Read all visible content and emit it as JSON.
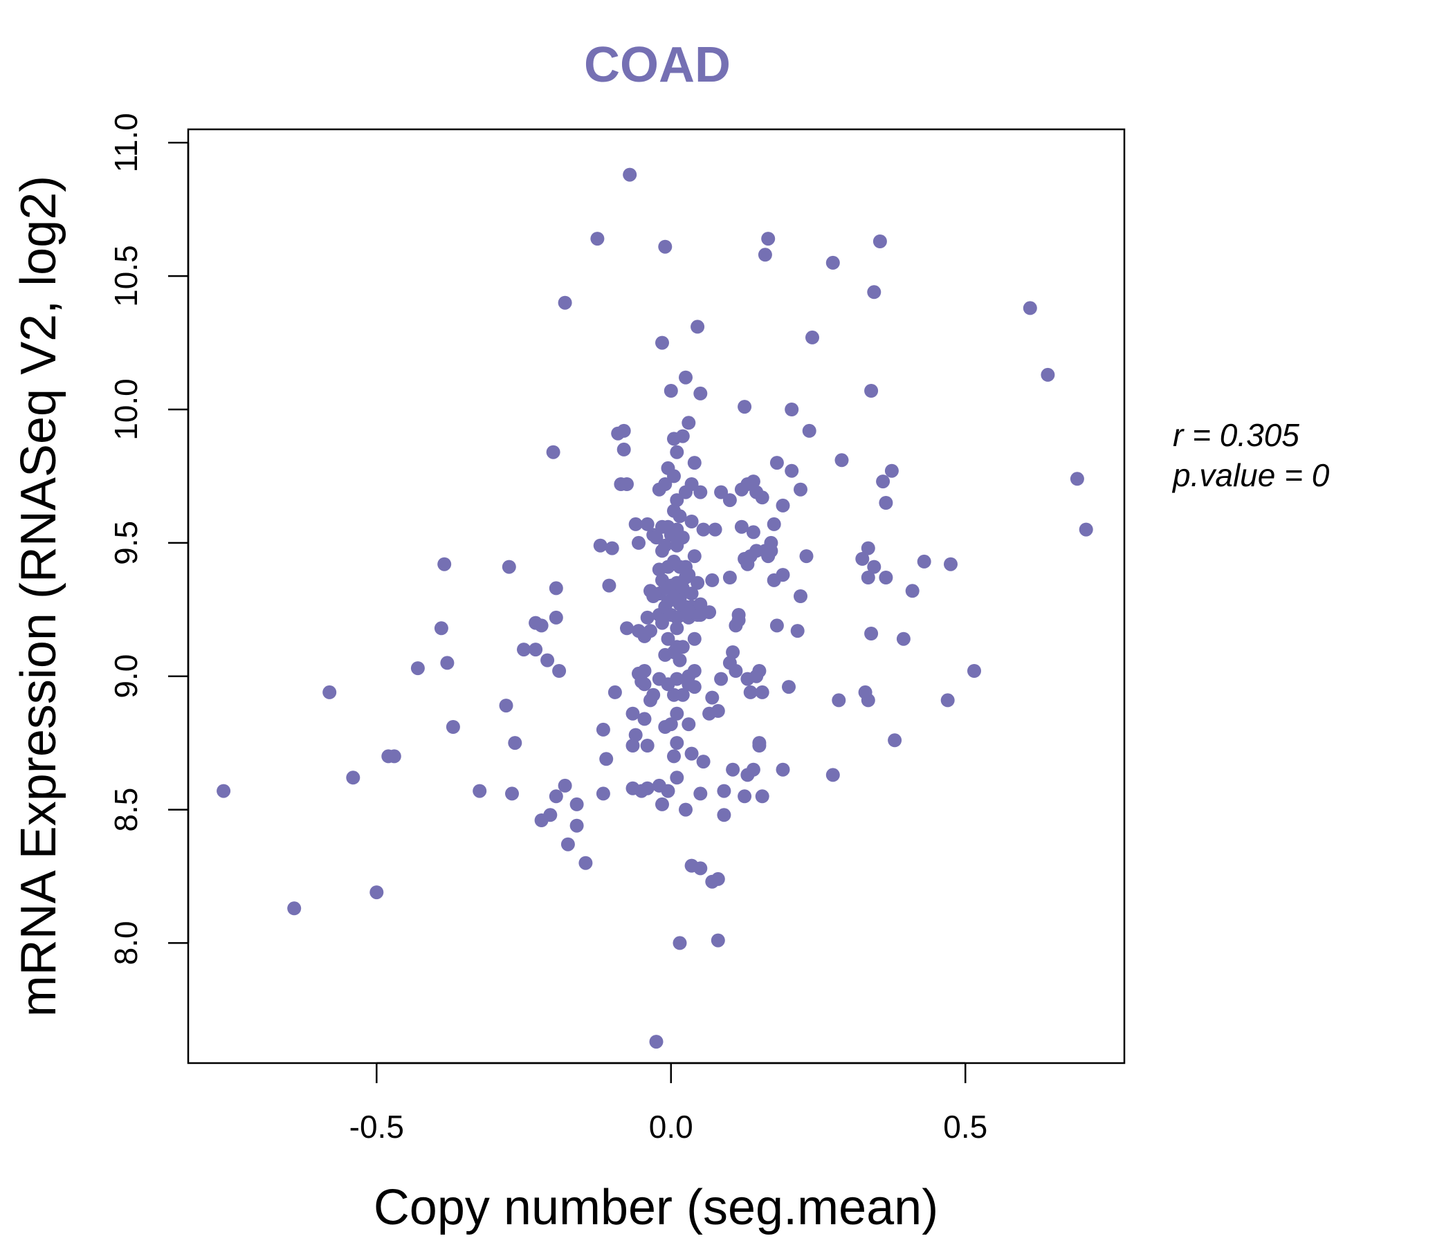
{
  "chart_data": {
    "type": "scatter",
    "title": "COAD",
    "xlabel": "Copy number (seg.mean)",
    "ylabel": "mRNA Expression (RNASeq V2, log2)",
    "xlim": [
      -0.82,
      0.77
    ],
    "ylim": [
      7.55,
      11.05
    ],
    "xticks": [
      -0.5,
      0.0,
      0.5
    ],
    "xtick_labels": [
      "-0.5",
      "0.0",
      "0.5"
    ],
    "yticks": [
      8.0,
      8.5,
      9.0,
      9.5,
      10.0,
      10.5,
      11.0
    ],
    "ytick_labels": [
      "8.0",
      "8.5",
      "9.0",
      "9.5",
      "10.0",
      "10.5",
      "11.0"
    ],
    "point_color": "#7570b3",
    "annotation": {
      "r_label": "r = 0.305",
      "p_label": "p.value = 0"
    },
    "points": [
      [
        -0.76,
        8.57
      ],
      [
        -0.64,
        8.13
      ],
      [
        -0.58,
        8.94
      ],
      [
        -0.54,
        8.62
      ],
      [
        -0.5,
        8.19
      ],
      [
        -0.48,
        8.7
      ],
      [
        -0.47,
        8.7
      ],
      [
        -0.43,
        9.03
      ],
      [
        -0.39,
        9.18
      ],
      [
        -0.385,
        9.42
      ],
      [
        -0.38,
        9.05
      ],
      [
        -0.37,
        8.81
      ],
      [
        -0.325,
        8.57
      ],
      [
        -0.28,
        8.89
      ],
      [
        -0.275,
        9.41
      ],
      [
        -0.27,
        8.56
      ],
      [
        -0.265,
        8.75
      ],
      [
        -0.25,
        9.1
      ],
      [
        -0.23,
        9.1
      ],
      [
        -0.23,
        9.2
      ],
      [
        -0.22,
        9.19
      ],
      [
        -0.22,
        8.46
      ],
      [
        -0.21,
        9.06
      ],
      [
        -0.205,
        8.48
      ],
      [
        -0.2,
        9.84
      ],
      [
        -0.195,
        9.22
      ],
      [
        -0.195,
        9.33
      ],
      [
        -0.19,
        9.02
      ],
      [
        -0.195,
        8.55
      ],
      [
        -0.18,
        10.4
      ],
      [
        -0.18,
        8.59
      ],
      [
        -0.175,
        8.37
      ],
      [
        -0.16,
        8.44
      ],
      [
        -0.16,
        8.52
      ],
      [
        -0.145,
        8.3
      ],
      [
        -0.125,
        10.64
      ],
      [
        -0.12,
        9.49
      ],
      [
        -0.115,
        8.8
      ],
      [
        -0.115,
        8.56
      ],
      [
        -0.11,
        8.69
      ],
      [
        -0.105,
        9.34
      ],
      [
        -0.1,
        9.48
      ],
      [
        -0.095,
        8.94
      ],
      [
        -0.09,
        9.91
      ],
      [
        -0.08,
        9.92
      ],
      [
        -0.08,
        9.85
      ],
      [
        -0.085,
        9.72
      ],
      [
        -0.075,
        9.72
      ],
      [
        -0.075,
        9.18
      ],
      [
        -0.07,
        10.88
      ],
      [
        -0.065,
        8.74
      ],
      [
        -0.065,
        8.58
      ],
      [
        -0.065,
        8.86
      ],
      [
        -0.06,
        9.57
      ],
      [
        -0.06,
        8.78
      ],
      [
        -0.055,
        9.5
      ],
      [
        -0.055,
        9.01
      ],
      [
        -0.055,
        9.17
      ],
      [
        -0.05,
        8.57
      ],
      [
        -0.05,
        8.98
      ],
      [
        -0.045,
        8.97
      ],
      [
        -0.045,
        9.02
      ],
      [
        -0.045,
        9.15
      ],
      [
        -0.045,
        8.84
      ],
      [
        -0.04,
        9.22
      ],
      [
        -0.04,
        9.57
      ],
      [
        -0.04,
        8.58
      ],
      [
        -0.04,
        8.74
      ],
      [
        -0.035,
        9.32
      ],
      [
        -0.035,
        8.91
      ],
      [
        -0.035,
        9.17
      ],
      [
        -0.03,
        9.3
      ],
      [
        -0.03,
        9.53
      ],
      [
        -0.03,
        8.93
      ],
      [
        -0.025,
        7.63
      ],
      [
        -0.025,
        9.52
      ],
      [
        -0.02,
        9.23
      ],
      [
        -0.02,
        9.4
      ],
      [
        -0.02,
        8.99
      ],
      [
        -0.02,
        8.59
      ],
      [
        -0.02,
        9.7
      ],
      [
        -0.02,
        9.31
      ],
      [
        -0.015,
        8.52
      ],
      [
        -0.015,
        10.25
      ],
      [
        -0.015,
        9.56
      ],
      [
        -0.015,
        9.2
      ],
      [
        -0.015,
        9.47
      ],
      [
        -0.015,
        9.36
      ],
      [
        -0.01,
        9.33
      ],
      [
        -0.01,
        9.49
      ],
      [
        -0.01,
        9.08
      ],
      [
        -0.01,
        8.81
      ],
      [
        -0.01,
        9.72
      ],
      [
        -0.01,
        9.26
      ],
      [
        -0.01,
        10.61
      ],
      [
        -0.005,
        9.56
      ],
      [
        -0.005,
        9.41
      ],
      [
        -0.005,
        8.97
      ],
      [
        -0.005,
        9.28
      ],
      [
        -0.005,
        8.57
      ],
      [
        -0.005,
        9.14
      ],
      [
        -0.005,
        9.78
      ],
      [
        0.0,
        9.34
      ],
      [
        0.0,
        10.07
      ],
      [
        0.0,
        8.82
      ],
      [
        0.0,
        9.53
      ],
      [
        0.0,
        9.23
      ],
      [
        0.005,
        9.43
      ],
      [
        0.005,
        9.62
      ],
      [
        0.005,
        8.7
      ],
      [
        0.005,
        9.09
      ],
      [
        0.005,
        9.3
      ],
      [
        0.005,
        8.93
      ],
      [
        0.005,
        9.89
      ],
      [
        0.005,
        9.75
      ],
      [
        0.01,
        9.22
      ],
      [
        0.01,
        9.49
      ],
      [
        0.01,
        9.11
      ],
      [
        0.01,
        9.66
      ],
      [
        0.01,
        8.99
      ],
      [
        0.01,
        8.86
      ],
      [
        0.01,
        8.75
      ],
      [
        0.01,
        9.35
      ],
      [
        0.01,
        8.62
      ],
      [
        0.01,
        9.84
      ],
      [
        0.01,
        9.18
      ],
      [
        0.01,
        9.55
      ],
      [
        0.015,
        9.6
      ],
      [
        0.015,
        9.27
      ],
      [
        0.015,
        9.06
      ],
      [
        0.015,
        9.41
      ],
      [
        0.015,
        9.29
      ],
      [
        0.015,
        8.0
      ],
      [
        0.02,
        9.52
      ],
      [
        0.02,
        9.33
      ],
      [
        0.02,
        9.11
      ],
      [
        0.02,
        8.93
      ],
      [
        0.02,
        9.9
      ],
      [
        0.02,
        9.23
      ],
      [
        0.025,
        9.37
      ],
      [
        0.025,
        9.69
      ],
      [
        0.025,
        8.5
      ],
      [
        0.025,
        10.12
      ],
      [
        0.025,
        9.26
      ],
      [
        0.025,
        9.41
      ],
      [
        0.03,
        9.95
      ],
      [
        0.03,
        9.22
      ],
      [
        0.03,
        8.82
      ],
      [
        0.03,
        9.0
      ],
      [
        0.03,
        9.38
      ],
      [
        0.03,
        8.97
      ],
      [
        0.035,
        8.29
      ],
      [
        0.035,
        9.72
      ],
      [
        0.035,
        9.31
      ],
      [
        0.035,
        9.58
      ],
      [
        0.035,
        9.26
      ],
      [
        0.035,
        8.71
      ],
      [
        0.04,
        9.45
      ],
      [
        0.04,
        9.24
      ],
      [
        0.04,
        9.8
      ],
      [
        0.04,
        9.02
      ],
      [
        0.04,
        8.96
      ],
      [
        0.04,
        9.14
      ],
      [
        0.045,
        9.35
      ],
      [
        0.045,
        10.31
      ],
      [
        0.045,
        9.23
      ],
      [
        0.05,
        10.06
      ],
      [
        0.05,
        9.27
      ],
      [
        0.05,
        8.56
      ],
      [
        0.05,
        9.23
      ],
      [
        0.05,
        9.69
      ],
      [
        0.05,
        8.28
      ],
      [
        0.055,
        8.68
      ],
      [
        0.055,
        9.55
      ],
      [
        0.065,
        9.24
      ],
      [
        0.065,
        8.86
      ],
      [
        0.07,
        8.23
      ],
      [
        0.07,
        9.36
      ],
      [
        0.07,
        8.92
      ],
      [
        0.075,
        9.55
      ],
      [
        0.08,
        8.24
      ],
      [
        0.08,
        8.87
      ],
      [
        0.08,
        8.01
      ],
      [
        0.085,
        8.99
      ],
      [
        0.085,
        9.69
      ],
      [
        0.09,
        8.57
      ],
      [
        0.09,
        8.48
      ],
      [
        0.1,
        9.66
      ],
      [
        0.1,
        9.37
      ],
      [
        0.1,
        9.05
      ],
      [
        0.105,
        9.09
      ],
      [
        0.105,
        8.65
      ],
      [
        0.11,
        9.19
      ],
      [
        0.11,
        9.02
      ],
      [
        0.115,
        9.23
      ],
      [
        0.115,
        9.21
      ],
      [
        0.12,
        9.7
      ],
      [
        0.12,
        9.56
      ],
      [
        0.125,
        9.44
      ],
      [
        0.125,
        8.55
      ],
      [
        0.125,
        10.01
      ],
      [
        0.13,
        9.72
      ],
      [
        0.13,
        8.99
      ],
      [
        0.13,
        9.42
      ],
      [
        0.13,
        8.63
      ],
      [
        0.135,
        8.94
      ],
      [
        0.135,
        9.45
      ],
      [
        0.14,
        8.65
      ],
      [
        0.14,
        9.73
      ],
      [
        0.14,
        9.54
      ],
      [
        0.145,
        9.0
      ],
      [
        0.145,
        9.47
      ],
      [
        0.145,
        9.69
      ],
      [
        0.15,
        9.02
      ],
      [
        0.15,
        8.74
      ],
      [
        0.15,
        8.75
      ],
      [
        0.155,
        9.67
      ],
      [
        0.155,
        8.55
      ],
      [
        0.155,
        8.94
      ],
      [
        0.16,
        9.47
      ],
      [
        0.16,
        10.58
      ],
      [
        0.165,
        9.45
      ],
      [
        0.165,
        10.64
      ],
      [
        0.17,
        9.47
      ],
      [
        0.17,
        9.5
      ],
      [
        0.175,
        9.57
      ],
      [
        0.175,
        9.36
      ],
      [
        0.18,
        9.8
      ],
      [
        0.18,
        9.19
      ],
      [
        0.19,
        8.65
      ],
      [
        0.19,
        9.64
      ],
      [
        0.19,
        9.38
      ],
      [
        0.2,
        8.96
      ],
      [
        0.205,
        10.0
      ],
      [
        0.205,
        9.77
      ],
      [
        0.215,
        9.17
      ],
      [
        0.22,
        9.3
      ],
      [
        0.22,
        9.7
      ],
      [
        0.23,
        9.45
      ],
      [
        0.235,
        9.92
      ],
      [
        0.24,
        10.27
      ],
      [
        0.275,
        8.63
      ],
      [
        0.275,
        10.55
      ],
      [
        0.285,
        8.91
      ],
      [
        0.29,
        9.81
      ],
      [
        0.325,
        9.44
      ],
      [
        0.33,
        8.94
      ],
      [
        0.335,
        9.48
      ],
      [
        0.335,
        9.37
      ],
      [
        0.335,
        8.91
      ],
      [
        0.34,
        10.07
      ],
      [
        0.34,
        9.16
      ],
      [
        0.345,
        10.44
      ],
      [
        0.345,
        9.41
      ],
      [
        0.355,
        10.63
      ],
      [
        0.36,
        9.73
      ],
      [
        0.365,
        9.37
      ],
      [
        0.365,
        9.65
      ],
      [
        0.375,
        9.77
      ],
      [
        0.38,
        8.76
      ],
      [
        0.395,
        9.14
      ],
      [
        0.41,
        9.32
      ],
      [
        0.43,
        9.43
      ],
      [
        0.47,
        8.91
      ],
      [
        0.475,
        9.42
      ],
      [
        0.515,
        9.02
      ],
      [
        0.61,
        10.38
      ],
      [
        0.64,
        10.13
      ],
      [
        0.69,
        9.74
      ],
      [
        0.705,
        9.55
      ]
    ]
  }
}
